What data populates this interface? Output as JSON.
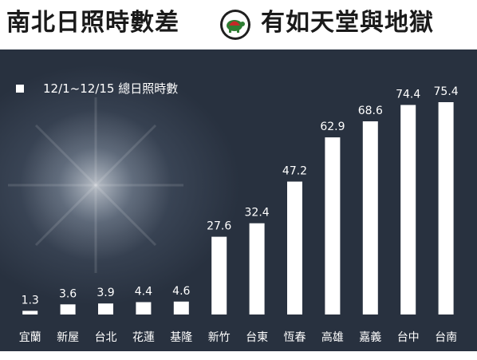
{
  "header": {
    "title_left": "南北日照時數差",
    "title_right": "有如天堂與地獄"
  },
  "legend": {
    "label": "12/1~12/15 總日照時數"
  },
  "colors": {
    "background": "#2e3746",
    "bar": "#ffffff",
    "text": "#ffffff",
    "title": "#1a1a1a",
    "logo_green": "#2e7d32",
    "logo_red": "#c62828"
  },
  "chart_data": {
    "type": "bar",
    "title": "",
    "xlabel": "",
    "ylabel": "",
    "ylim": [
      0,
      80
    ],
    "legend_position": "top-left",
    "grid": false,
    "categories": [
      "宜蘭",
      "新屋",
      "台北",
      "花蓮",
      "基隆",
      "新竹",
      "台東",
      "恆春",
      "高雄",
      "嘉義",
      "台中",
      "台南"
    ],
    "series": [
      {
        "name": "12/1~12/15 總日照時數",
        "values": [
          1.3,
          3.6,
          3.9,
          4.4,
          4.6,
          27.6,
          32.4,
          47.2,
          62.9,
          68.6,
          74.4,
          75.4
        ],
        "labels": [
          "1.3",
          "3.6",
          "3.9",
          "4.4",
          "4.6",
          "27.6",
          "32.4",
          "47.2",
          "62.9",
          "68.6",
          "74.4",
          "75.4"
        ]
      }
    ]
  }
}
